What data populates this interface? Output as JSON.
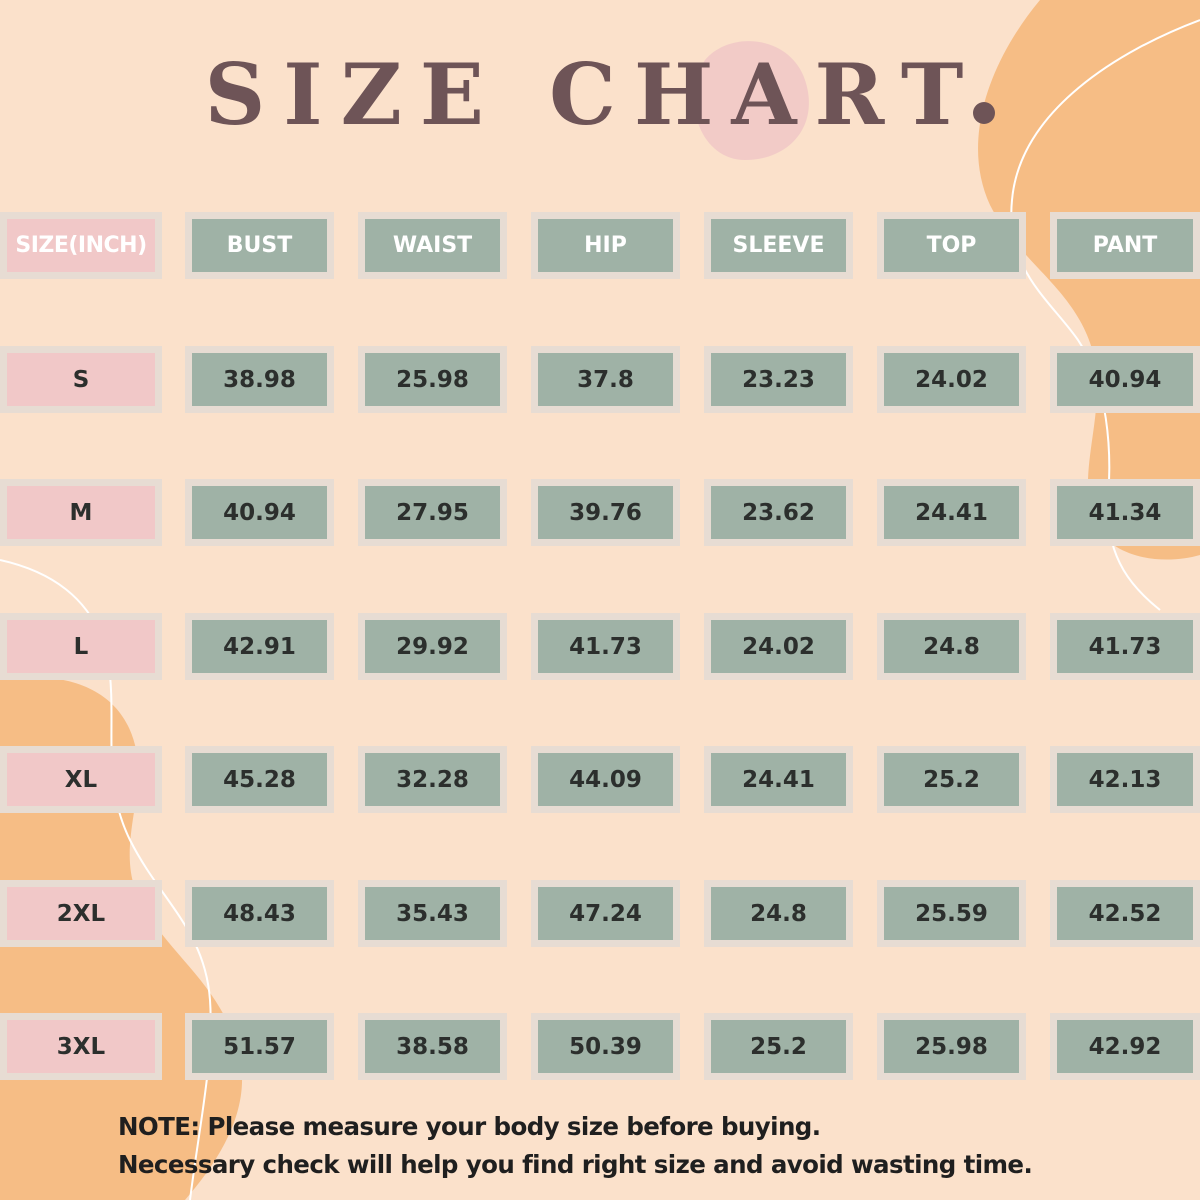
{
  "title": "SIZE CHART",
  "colors": {
    "background": "#fbe1cb",
    "blob_orange": "#f6bd85",
    "blob_pink": "#f1c9c7",
    "cell_sage": "#9fb2a6",
    "cell_pink": "#f1c8c8",
    "cell_border": "#e7dcd3",
    "title_color": "#6e5457"
  },
  "table": {
    "headers": [
      "SIZE(INCH)",
      "BUST",
      "WAIST",
      "HIP",
      "SLEEVE",
      "TOP",
      "PANT"
    ],
    "rows": [
      {
        "size": "S",
        "values": [
          "38.98",
          "25.98",
          "37.8",
          "23.23",
          "24.02",
          "40.94"
        ]
      },
      {
        "size": "M",
        "values": [
          "40.94",
          "27.95",
          "39.76",
          "23.62",
          "24.41",
          "41.34"
        ]
      },
      {
        "size": "L",
        "values": [
          "42.91",
          "29.92",
          "41.73",
          "24.02",
          "24.8",
          "41.73"
        ]
      },
      {
        "size": "XL",
        "values": [
          "45.28",
          "32.28",
          "44.09",
          "24.41",
          "25.2",
          "42.13"
        ]
      },
      {
        "size": "2XL",
        "values": [
          "48.43",
          "35.43",
          "47.24",
          "24.8",
          "25.59",
          "42.52"
        ]
      },
      {
        "size": "3XL",
        "values": [
          "51.57",
          "38.58",
          "50.39",
          "25.2",
          "25.98",
          "42.92"
        ]
      }
    ]
  },
  "note": {
    "line1": "NOTE: Please measure your body size before buying.",
    "line2": "Necessary check will help you find right size and avoid wasting time."
  }
}
